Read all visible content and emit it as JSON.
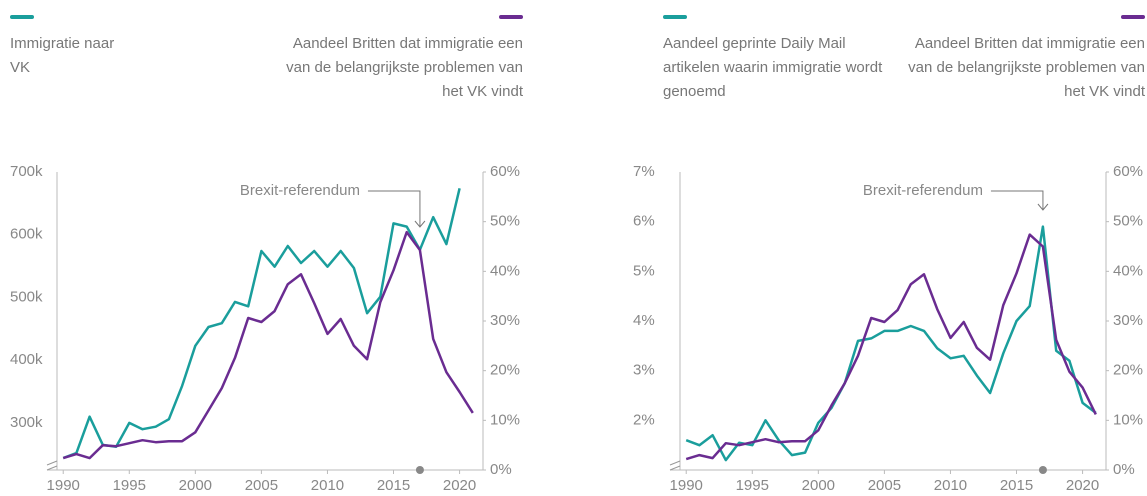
{
  "chart_data": [
    {
      "type": "line",
      "x": [
        1990,
        1991,
        1992,
        1993,
        1994,
        1995,
        1996,
        1997,
        1998,
        1999,
        2000,
        2001,
        2002,
        2003,
        2004,
        2005,
        2006,
        2007,
        2008,
        2009,
        2010,
        2011,
        2012,
        2013,
        2014,
        2015,
        2016,
        2017,
        2018,
        2019,
        2020,
        2021
      ],
      "series": [
        {
          "name": "Immigratie naar VK",
          "color": "#1a9e9c",
          "axis": "y",
          "values": [
            244000,
            252000,
            310000,
            265000,
            262000,
            300000,
            290000,
            294000,
            306000,
            359000,
            423000,
            453000,
            459000,
            493000,
            486000,
            574000,
            549000,
            582000,
            555000,
            574000,
            549000,
            574000,
            547000,
            475000,
            501000,
            618000,
            613000,
            576000,
            628000,
            585000,
            674000,
            null
          ]
        },
        {
          "name": "Aandeel Britten dat immigratie een van de belangrijkste problemen van het VK vindt",
          "color": "#6a2c91",
          "axis": "y2",
          "values": [
            2.4,
            3.2,
            2.4,
            5,
            4.8,
            5.4,
            6,
            5.6,
            5.8,
            5.8,
            7.6,
            12,
            16.5,
            22.6,
            30.6,
            29.8,
            32,
            37.4,
            39.4,
            33.6,
            27.4,
            30.4,
            25,
            22.3,
            33.8,
            40.2,
            47.9,
            44.3,
            26.4,
            19.7,
            15.7,
            11.5
          ]
        }
      ],
      "xlim": [
        1989,
        2022
      ],
      "xticks": [
        1990,
        1995,
        2000,
        2005,
        2010,
        2015,
        2020
      ],
      "ylim": [
        225000,
        700000
      ],
      "yticks": [
        {
          "value": 300000,
          "label": "300k"
        },
        {
          "value": 400000,
          "label": "400k"
        },
        {
          "value": 500000,
          "label": "500k"
        },
        {
          "value": 600000,
          "label": "600k"
        },
        {
          "value": 700000,
          "label": "700k"
        }
      ],
      "y2lim": [
        0,
        60
      ],
      "y2ticks": [
        {
          "value": 0,
          "label": "0%"
        },
        {
          "value": 10,
          "label": "10%"
        },
        {
          "value": 20,
          "label": "20%"
        },
        {
          "value": 30,
          "label": "30%"
        },
        {
          "value": 40,
          "label": "40%"
        },
        {
          "value": 50,
          "label": "50%"
        },
        {
          "value": 60,
          "label": "60%"
        }
      ],
      "annotation": {
        "text": "Brexit-referendum",
        "x": 2017
      }
    },
    {
      "type": "line",
      "x": [
        1990,
        1991,
        1992,
        1993,
        1994,
        1995,
        1996,
        1997,
        1998,
        1999,
        2000,
        2001,
        2002,
        2003,
        2004,
        2005,
        2006,
        2007,
        2008,
        2009,
        2010,
        2011,
        2012,
        2013,
        2014,
        2015,
        2016,
        2017,
        2018,
        2019,
        2020,
        2021
      ],
      "series": [
        {
          "name": "Aandeel geprinte Daily Mail artikelen waarin immigratie wordt genoemd",
          "color": "#1a9e9c",
          "axis": "y",
          "values": [
            1.6,
            1.5,
            1.7,
            1.2,
            1.55,
            1.5,
            2.0,
            1.6,
            1.3,
            1.35,
            1.95,
            2.25,
            2.75,
            3.6,
            3.65,
            3.8,
            3.8,
            3.9,
            3.8,
            3.45,
            3.25,
            3.3,
            2.9,
            2.55,
            3.35,
            4.0,
            4.3,
            5.9,
            3.4,
            3.2,
            2.35,
            2.15
          ]
        },
        {
          "name": "Aandeel Britten dat immigratie een van de belangrijkste problemen van het VK vindt",
          "color": "#6a2c91",
          "axis": "y2",
          "values": [
            2.2,
            3,
            2.4,
            5.4,
            5,
            5.6,
            6.2,
            5.6,
            5.8,
            5.8,
            8,
            13,
            17.5,
            23,
            30.6,
            29.8,
            32.2,
            37.4,
            39.4,
            32.4,
            26.6,
            29.8,
            24.6,
            22.2,
            33.2,
            39.6,
            47.4,
            45,
            26.2,
            19.8,
            16.6,
            11.2
          ]
        }
      ],
      "xlim": [
        1989,
        2022
      ],
      "xticks": [
        1990,
        1995,
        2000,
        2005,
        2010,
        2015,
        2020
      ],
      "ylim": [
        1,
        7
      ],
      "yticks": [
        {
          "value": 2,
          "label": "2%"
        },
        {
          "value": 3,
          "label": "3%"
        },
        {
          "value": 4,
          "label": "4%"
        },
        {
          "value": 5,
          "label": "5%"
        },
        {
          "value": 6,
          "label": "6%"
        },
        {
          "value": 7,
          "label": "7%"
        }
      ],
      "y2lim": [
        0,
        60
      ],
      "y2ticks": [
        {
          "value": 0,
          "label": "0%"
        },
        {
          "value": 10,
          "label": "10%"
        },
        {
          "value": 20,
          "label": "20%"
        },
        {
          "value": 30,
          "label": "30%"
        },
        {
          "value": 40,
          "label": "40%"
        },
        {
          "value": 50,
          "label": "50%"
        },
        {
          "value": 60,
          "label": "60%"
        }
      ],
      "annotation": {
        "text": "Brexit-referendum",
        "x": 2017
      }
    }
  ]
}
